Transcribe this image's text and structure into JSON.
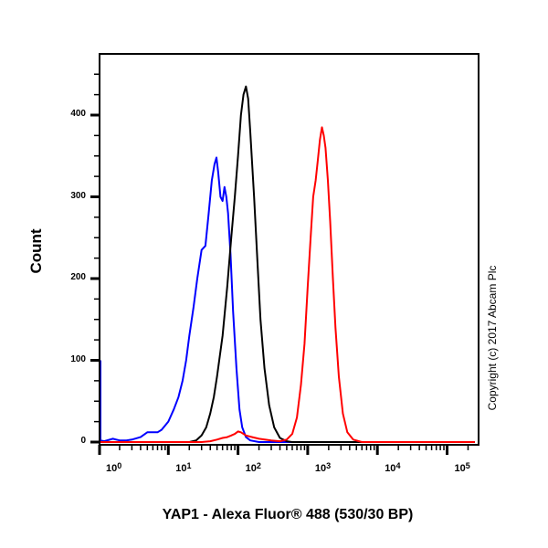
{
  "chart_data": {
    "type": "line",
    "title": "",
    "xlabel": "YAP1 - Alexa Fluor® 488 (530/30 BP)",
    "ylabel": "Count",
    "xscale": "log",
    "xlim": [
      0.7,
      250000
    ],
    "ylim": [
      0,
      480
    ],
    "x_ticks": [
      "10^0",
      "10^1",
      "10^2",
      "10^3",
      "10^4",
      "10^5"
    ],
    "y_ticks": [
      0,
      100,
      200,
      300,
      400
    ],
    "grid": false,
    "legend": null,
    "annotations": [
      "Copyright (c) 2017 Abcam Plc"
    ],
    "series": [
      {
        "name": "blue",
        "color": "#0000ff",
        "points": [
          [
            0.7,
            100
          ],
          [
            0.75,
            30
          ],
          [
            0.8,
            8
          ],
          [
            0.9,
            3
          ],
          [
            1.0,
            2
          ],
          [
            1.2,
            1
          ],
          [
            1.6,
            4
          ],
          [
            2.0,
            2
          ],
          [
            2.5,
            2
          ],
          [
            3,
            3
          ],
          [
            4,
            6
          ],
          [
            5,
            12
          ],
          [
            6,
            12
          ],
          [
            7,
            12
          ],
          [
            8,
            15
          ],
          [
            10,
            25
          ],
          [
            12,
            40
          ],
          [
            14,
            55
          ],
          [
            16,
            75
          ],
          [
            18,
            100
          ],
          [
            20,
            130
          ],
          [
            23,
            165
          ],
          [
            26,
            200
          ],
          [
            30,
            235
          ],
          [
            34,
            240
          ],
          [
            38,
            280
          ],
          [
            42,
            320
          ],
          [
            46,
            340
          ],
          [
            49,
            348
          ],
          [
            52,
            330
          ],
          [
            56,
            300
          ],
          [
            60,
            295
          ],
          [
            64,
            312
          ],
          [
            68,
            300
          ],
          [
            72,
            280
          ],
          [
            78,
            230
          ],
          [
            85,
            160
          ],
          [
            95,
            90
          ],
          [
            105,
            40
          ],
          [
            115,
            18
          ],
          [
            130,
            6
          ],
          [
            150,
            2
          ],
          [
            200,
            0
          ],
          [
            250000,
            0
          ]
        ]
      },
      {
        "name": "black",
        "color": "#000000",
        "points": [
          [
            0.7,
            0
          ],
          [
            20,
            0
          ],
          [
            25,
            2
          ],
          [
            30,
            8
          ],
          [
            35,
            18
          ],
          [
            40,
            35
          ],
          [
            45,
            55
          ],
          [
            50,
            80
          ],
          [
            60,
            130
          ],
          [
            70,
            190
          ],
          [
            80,
            250
          ],
          [
            90,
            300
          ],
          [
            100,
            350
          ],
          [
            110,
            400
          ],
          [
            120,
            425
          ],
          [
            130,
            435
          ],
          [
            140,
            420
          ],
          [
            150,
            380
          ],
          [
            170,
            300
          ],
          [
            190,
            220
          ],
          [
            210,
            150
          ],
          [
            240,
            90
          ],
          [
            280,
            45
          ],
          [
            330,
            18
          ],
          [
            400,
            5
          ],
          [
            500,
            1
          ],
          [
            600,
            0
          ],
          [
            250000,
            0
          ]
        ]
      },
      {
        "name": "red",
        "color": "#ff0000",
        "points": [
          [
            0.7,
            0
          ],
          [
            30,
            0
          ],
          [
            40,
            1
          ],
          [
            50,
            3
          ],
          [
            60,
            5
          ],
          [
            70,
            6
          ],
          [
            80,
            8
          ],
          [
            90,
            10
          ],
          [
            100,
            13
          ],
          [
            110,
            12
          ],
          [
            130,
            8
          ],
          [
            160,
            6
          ],
          [
            200,
            4
          ],
          [
            300,
            2
          ],
          [
            400,
            1
          ],
          [
            500,
            3
          ],
          [
            600,
            10
          ],
          [
            700,
            30
          ],
          [
            800,
            70
          ],
          [
            900,
            120
          ],
          [
            1000,
            190
          ],
          [
            1100,
            250
          ],
          [
            1200,
            300
          ],
          [
            1300,
            320
          ],
          [
            1400,
            345
          ],
          [
            1500,
            370
          ],
          [
            1600,
            385
          ],
          [
            1700,
            375
          ],
          [
            1800,
            360
          ],
          [
            1950,
            320
          ],
          [
            2100,
            270
          ],
          [
            2300,
            200
          ],
          [
            2500,
            140
          ],
          [
            2800,
            80
          ],
          [
            3200,
            35
          ],
          [
            3700,
            12
          ],
          [
            4500,
            3
          ],
          [
            6000,
            0
          ],
          [
            250000,
            0
          ]
        ]
      }
    ]
  },
  "axes": {
    "ylabel": "Count",
    "xlabel": "YAP1 - Alexa Fluor® 488 (530/30 BP)",
    "y_tick_labels": [
      "0",
      "100",
      "200",
      "300",
      "400"
    ],
    "x_tick_labels": [
      {
        "base": "10",
        "exp": "0"
      },
      {
        "base": "10",
        "exp": "1"
      },
      {
        "base": "10",
        "exp": "2"
      },
      {
        "base": "10",
        "exp": "3"
      },
      {
        "base": "10",
        "exp": "4"
      },
      {
        "base": "10",
        "exp": "5"
      }
    ]
  },
  "copyright": "Copyright (c) 2017 Abcam Plc"
}
